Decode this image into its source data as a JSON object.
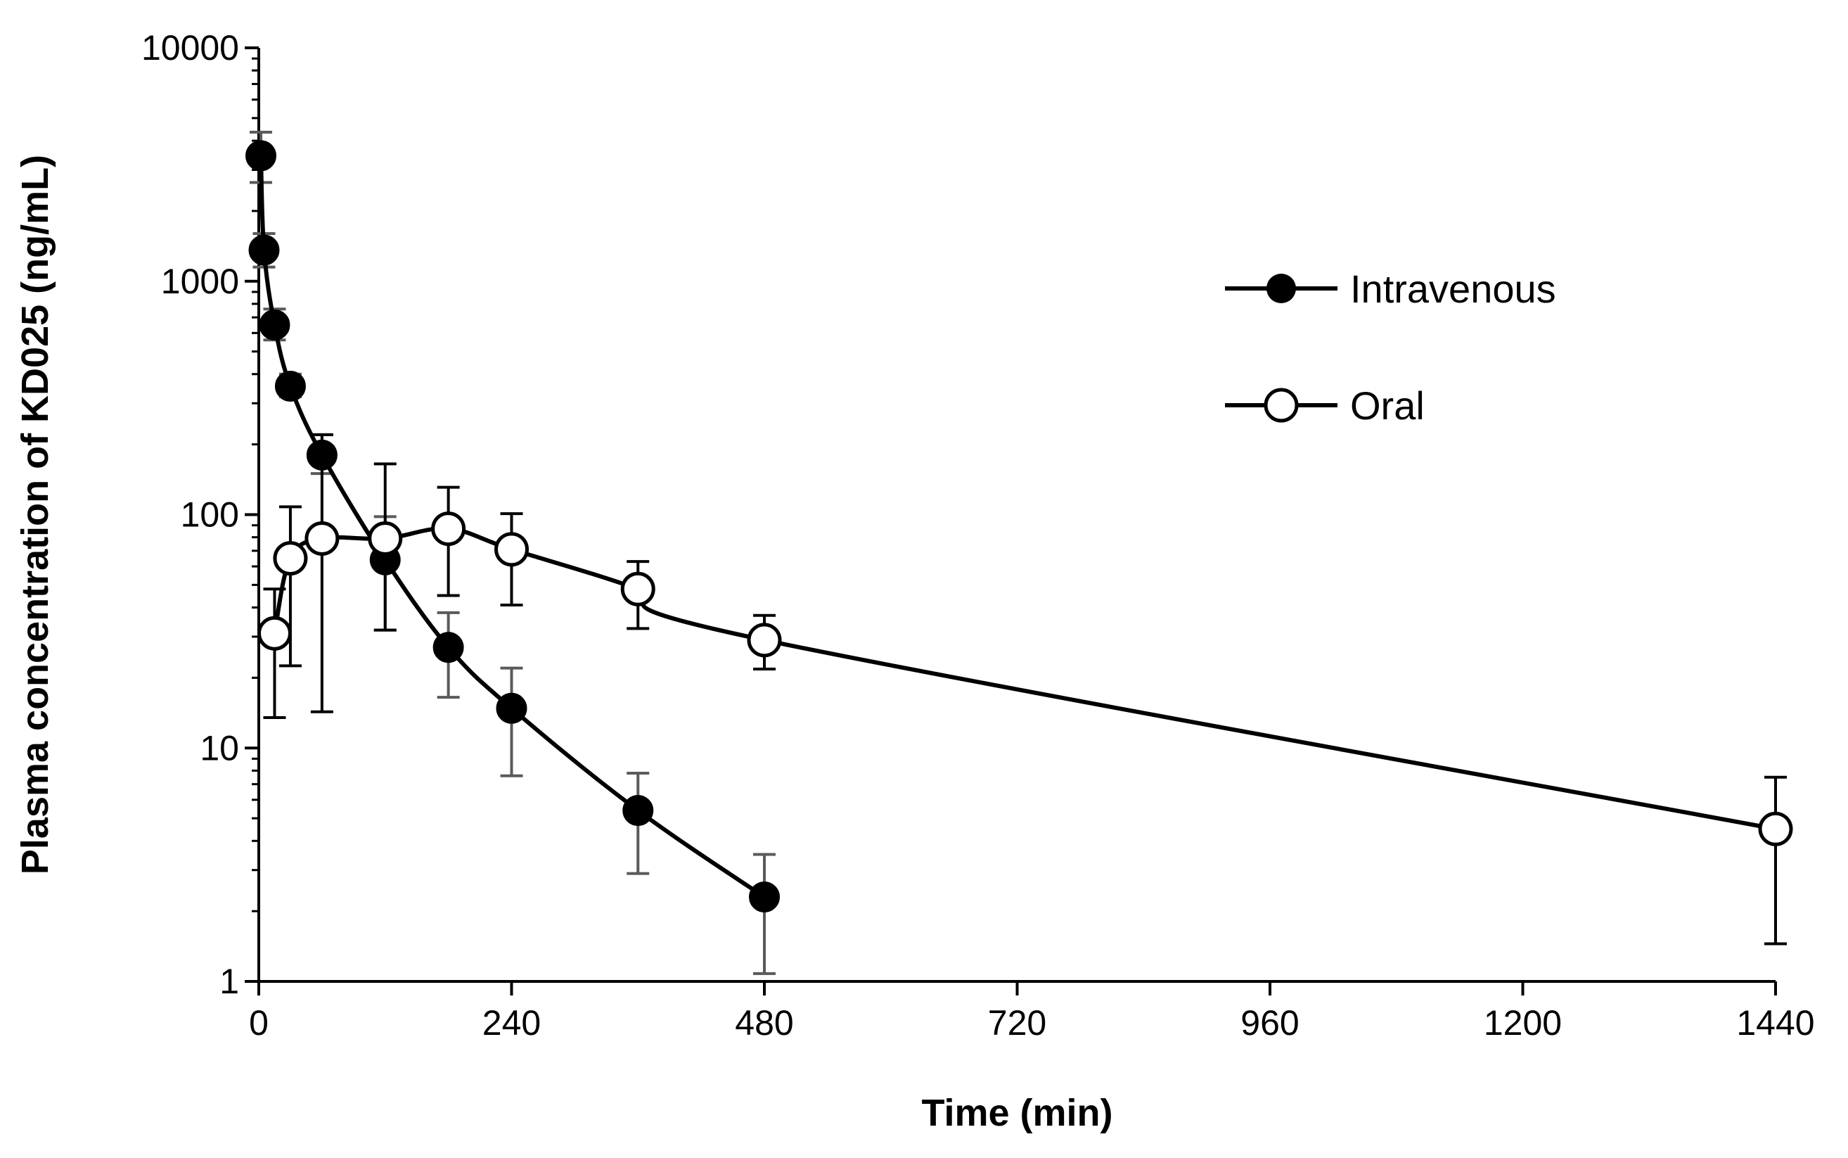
{
  "chart_data": {
    "type": "line",
    "title": "",
    "xlabel": "Time (min)",
    "ylabel": "Plasma concentration of KD025 (ng/mL)",
    "yscale": "log",
    "xlim": [
      0,
      1440
    ],
    "ylim": [
      1,
      10000
    ],
    "xticks": [
      0,
      240,
      480,
      720,
      960,
      1200,
      1440
    ],
    "yticks": [
      1,
      10,
      100,
      1000,
      10000
    ],
    "xtick_labels": [
      "0",
      "240",
      "480",
      "720",
      "960",
      "1200",
      "1440"
    ],
    "ytick_labels": [
      "1",
      "10",
      "100",
      "1000",
      "10000"
    ],
    "legend_position": "top-right",
    "grid": false,
    "series": [
      {
        "name": "Intravenous",
        "marker": "filled-circle",
        "x": [
          2,
          5,
          15,
          30,
          60,
          120,
          180,
          240,
          360,
          480
        ],
        "y": [
          3450,
          1360,
          650,
          355,
          180,
          64,
          27,
          14.8,
          5.4,
          2.3
        ],
        "err_hi": [
          4350,
          1600,
          760,
          400,
          220,
          98,
          38,
          22,
          7.8,
          3.5
        ],
        "err_lo": [
          2650,
          1150,
          560,
          320,
          150,
          32,
          16.5,
          7.6,
          2.9,
          1.08
        ]
      },
      {
        "name": "Oral",
        "marker": "open-circle",
        "x": [
          15,
          30,
          60,
          120,
          180,
          240,
          360,
          480,
          1440
        ],
        "y": [
          31,
          65,
          79,
          79,
          87,
          71,
          48,
          29,
          4.5
        ],
        "err_hi": [
          48,
          108,
          220,
          165,
          131,
          101,
          63,
          37,
          7.5
        ],
        "err_lo": [
          13.5,
          22.5,
          14.3,
          32,
          45,
          41,
          32.5,
          21.8,
          1.45
        ]
      }
    ]
  }
}
